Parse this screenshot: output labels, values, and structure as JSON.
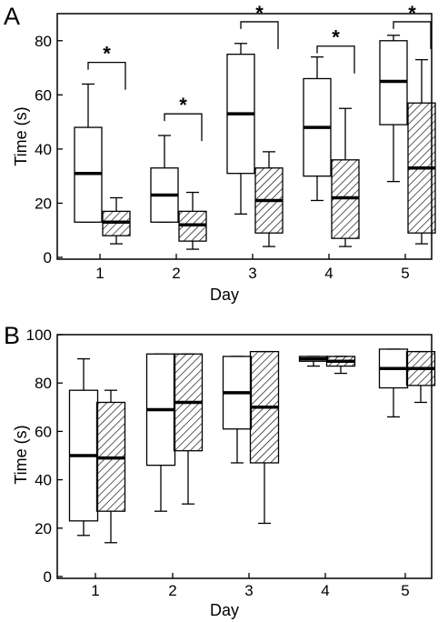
{
  "chart_data": [
    {
      "type": "boxplot",
      "panel_label": "A",
      "xlabel": "Day",
      "ylabel": "Time (s)",
      "ylim": [
        0,
        90
      ],
      "yticks": [
        0,
        20,
        40,
        60,
        80
      ],
      "categories": [
        "1",
        "2",
        "3",
        "4",
        "5"
      ],
      "grid": false,
      "series": [
        {
          "fill": "open",
          "boxes": [
            {
              "min": 13,
              "q1": 13,
              "median": 31,
              "q3": 48,
              "max": 64
            },
            {
              "min": 13,
              "q1": 13,
              "median": 23,
              "q3": 33,
              "max": 45
            },
            {
              "min": 16,
              "q1": 31,
              "median": 53,
              "q3": 75,
              "max": 79
            },
            {
              "min": 21,
              "q1": 30,
              "median": 48,
              "q3": 66,
              "max": 74
            },
            {
              "min": 28,
              "q1": 49,
              "median": 65,
              "q3": 80,
              "max": 82
            }
          ]
        },
        {
          "fill": "hatched",
          "boxes": [
            {
              "min": 5,
              "q1": 8,
              "median": 13,
              "q3": 17,
              "max": 22
            },
            {
              "min": 3,
              "q1": 6,
              "median": 12,
              "q3": 17,
              "max": 24
            },
            {
              "min": 4,
              "q1": 9,
              "median": 21,
              "q3": 33,
              "max": 39
            },
            {
              "min": 4,
              "q1": 7,
              "median": 22,
              "q3": 36,
              "max": 55
            },
            {
              "min": 5,
              "q1": 9,
              "median": 33,
              "q3": 57,
              "max": 73
            }
          ]
        }
      ],
      "significance": [
        {
          "day": "1",
          "label": "*",
          "y": 72
        },
        {
          "day": "2",
          "label": "*",
          "y": 53
        },
        {
          "day": "3",
          "label": "*",
          "y": 87
        },
        {
          "day": "4",
          "label": "*",
          "y": 78
        },
        {
          "day": "5",
          "label": "*",
          "y": 87
        }
      ]
    },
    {
      "type": "boxplot",
      "panel_label": "B",
      "xlabel": "Day",
      "ylabel": "Time (s)",
      "ylim": [
        0,
        100
      ],
      "yticks": [
        0,
        20,
        40,
        60,
        80,
        100
      ],
      "categories": [
        "1",
        "2",
        "3",
        "4",
        "5"
      ],
      "grid": false,
      "series": [
        {
          "fill": "open",
          "boxes": [
            {
              "min": 17,
              "q1": 23,
              "median": 50,
              "q3": 77,
              "max": 90
            },
            {
              "min": 27,
              "q1": 46,
              "median": 69,
              "q3": 92,
              "max": 92
            },
            {
              "min": 47,
              "q1": 61,
              "median": 76,
              "q3": 91,
              "max": 91
            },
            {
              "min": 87,
              "q1": 89,
              "median": 90,
              "q3": 91,
              "max": 91
            },
            {
              "min": 66,
              "q1": 78,
              "median": 86,
              "q3": 94,
              "max": 94
            }
          ]
        },
        {
          "fill": "hatched",
          "boxes": [
            {
              "min": 14,
              "q1": 27,
              "median": 49,
              "q3": 72,
              "max": 77
            },
            {
              "min": 30,
              "q1": 52,
              "median": 72,
              "q3": 92,
              "max": 92
            },
            {
              "min": 22,
              "q1": 47,
              "median": 70,
              "q3": 93,
              "max": 93
            },
            {
              "min": 84,
              "q1": 87,
              "median": 89,
              "q3": 91,
              "max": 91
            },
            {
              "min": 72,
              "q1": 79,
              "median": 86,
              "q3": 93,
              "max": 93
            }
          ]
        }
      ],
      "significance": []
    }
  ]
}
